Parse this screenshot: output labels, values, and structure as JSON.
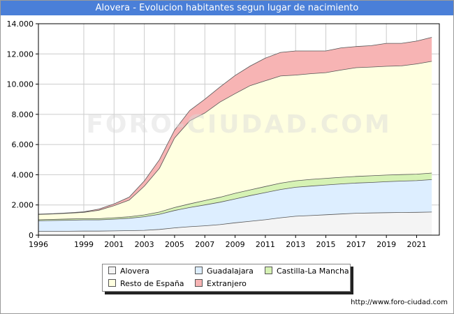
{
  "chart_data": {
    "type": "area",
    "stacked": true,
    "title": "Alovera - Evolucion habitantes segun lugar de nacimiento",
    "xlabel": "",
    "ylabel": "",
    "ylim": [
      0,
      14000
    ],
    "xlim": [
      1996,
      2022.5
    ],
    "grid": true,
    "legend_position": "bottom",
    "x": [
      1996,
      1997,
      1998,
      1999,
      2000,
      2001,
      2002,
      2003,
      2004,
      2005,
      2006,
      2007,
      2008,
      2009,
      2010,
      2011,
      2012,
      2013,
      2014,
      2015,
      2016,
      2017,
      2018,
      2019,
      2020,
      2021,
      2022
    ],
    "x_ticks": [
      "1996",
      "1999",
      "2001",
      "2003",
      "2005",
      "2007",
      "2009",
      "2011",
      "2013",
      "2015",
      "2017",
      "2019",
      "2021"
    ],
    "x_tick_values": [
      1996,
      1999,
      2001,
      2003,
      2005,
      2007,
      2009,
      2011,
      2013,
      2015,
      2017,
      2019,
      2021
    ],
    "y_ticks": [
      "0",
      "2.000",
      "4.000",
      "6.000",
      "8.000",
      "10.000",
      "12.000",
      "14.000"
    ],
    "y_tick_values": [
      0,
      2000,
      4000,
      6000,
      8000,
      10000,
      12000,
      14000
    ],
    "series": [
      {
        "name": "Alovera",
        "color": "#f4f4f4",
        "values": [
          250,
          250,
          260,
          270,
          270,
          280,
          300,
          320,
          380,
          480,
          560,
          620,
          700,
          820,
          920,
          1020,
          1150,
          1250,
          1300,
          1350,
          1400,
          1450,
          1470,
          1490,
          1500,
          1510,
          1530
        ]
      },
      {
        "name": "Guadalajara",
        "color": "#ddeeff",
        "values": [
          700,
          720,
          730,
          740,
          740,
          780,
          820,
          900,
          1000,
          1150,
          1270,
          1380,
          1480,
          1580,
          1700,
          1800,
          1870,
          1920,
          1950,
          1970,
          1990,
          2000,
          2020,
          2050,
          2080,
          2100,
          2150
        ]
      },
      {
        "name": "Castilla-La Mancha",
        "color": "#d6f2b4",
        "values": [
          70,
          75,
          80,
          80,
          80,
          90,
          100,
          120,
          150,
          200,
          240,
          290,
          330,
          370,
          380,
          400,
          420,
          430,
          440,
          440,
          440,
          440,
          440,
          440,
          430,
          430,
          430
        ]
      },
      {
        "name": "Resto de España",
        "color": "#ffffe0",
        "values": [
          350,
          360,
          380,
          420,
          560,
          800,
          1100,
          1900,
          2900,
          4600,
          5500,
          5800,
          6300,
          6600,
          6900,
          7000,
          7100,
          7000,
          7000,
          7000,
          7100,
          7200,
          7200,
          7200,
          7200,
          7300,
          7400
        ]
      },
      {
        "name": "Extranjero",
        "color": "#f7b4b4",
        "values": [
          20,
          20,
          30,
          40,
          80,
          120,
          200,
          350,
          570,
          520,
          680,
          910,
          1000,
          1200,
          1300,
          1500,
          1560,
          1600,
          1510,
          1440,
          1470,
          1400,
          1420,
          1520,
          1490,
          1510,
          1590
        ]
      }
    ]
  },
  "source_url": "http://www.foro-ciudad.com",
  "watermark": "FORO-CIUDAD.COM"
}
